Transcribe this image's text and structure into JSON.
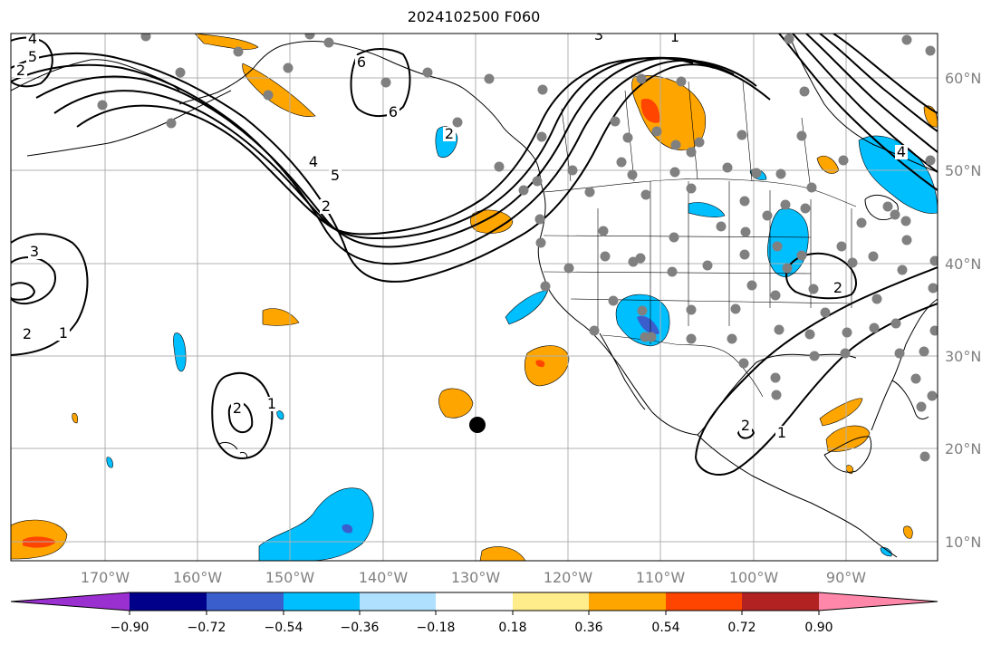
{
  "title": "2024102500 F060",
  "map": {
    "lon_ticks": [
      "170°W",
      "160°W",
      "150°W",
      "140°W",
      "130°W",
      "120°W",
      "110°W",
      "100°W",
      "90°W"
    ],
    "lat_ticks": [
      "60°N",
      "50°N",
      "40°N",
      "30°N",
      "20°N",
      "10°N"
    ],
    "contour_labels": [
      "4",
      "5",
      "2",
      "3",
      "6",
      "6",
      "1",
      "2",
      "4",
      "5",
      "2",
      "3",
      "2",
      "1",
      "2",
      "1",
      "2",
      "1",
      "2",
      "4"
    ],
    "colors": {
      "coast": "#000000",
      "grid": "#b0b0b0",
      "station": "#808080",
      "marker": "#000000"
    }
  },
  "colorbar": {
    "tick_labels": [
      "−0.90",
      "−0.72",
      "−0.54",
      "−0.36",
      "−0.18",
      "0.18",
      "0.36",
      "0.54",
      "0.72",
      "0.90"
    ],
    "colors": [
      "#9b30d0",
      "#00008b",
      "#3a5fcd",
      "#00bfff",
      "#afe1ff",
      "#ffffff",
      "#ffec8b",
      "#ffa500",
      "#ff4500",
      "#b22222",
      "#ff88aa"
    ]
  }
}
